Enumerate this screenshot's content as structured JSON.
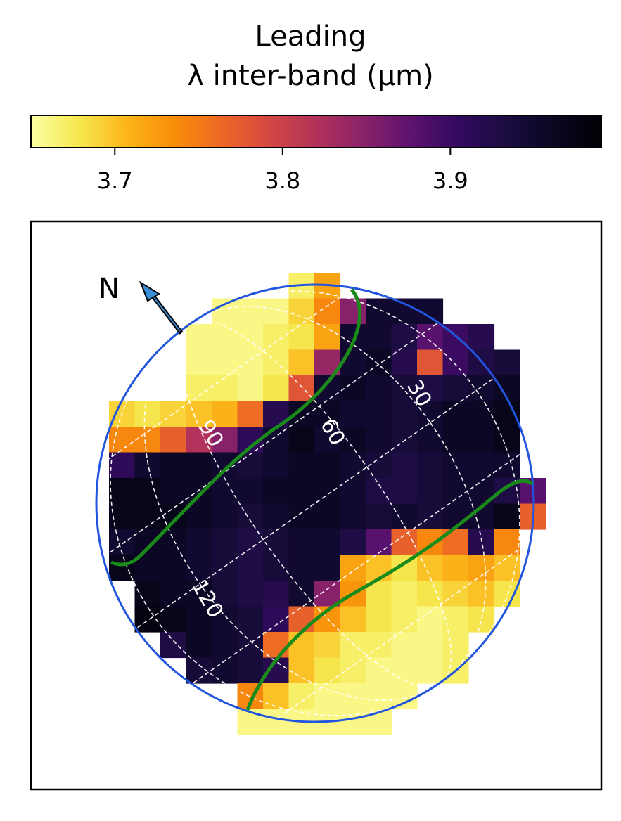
{
  "chart_data": {
    "type": "heatmap",
    "title_line1": "Leading",
    "title_line2": "λ inter-band  (μm)",
    "colorbar": {
      "min": 3.65,
      "max": 3.99,
      "ticks": [
        "3.7",
        "3.8",
        "3.9"
      ],
      "tick_values": [
        3.7,
        3.8,
        3.9
      ],
      "colormap": "inferno_r",
      "stops": [
        "#fcffa4",
        "#f7e850",
        "#fbb61a",
        "#f98e09",
        "#ed6925",
        "#d44842",
        "#b1325a",
        "#8a226a",
        "#5d126e",
        "#320a5e",
        "#1b0c41",
        "#0a0722",
        "#000004"
      ]
    },
    "north_label": "N",
    "grid_labels": [
      "30",
      "60",
      "90",
      "120"
    ],
    "limb_color": "#2255dd",
    "terminator_color": "#1a8a1a",
    "grid_color": "#ffffff",
    "pixel_rows": [
      {
        "row": 0,
        "c0": 7,
        "v": [
          3.67,
          3.72
        ]
      },
      {
        "row": 1,
        "c0": 4,
        "v": [
          3.66,
          3.66,
          3.66,
          3.69,
          3.74,
          3.85,
          3.95,
          3.95,
          3.95
        ]
      },
      {
        "row": 2,
        "c0": 3,
        "v": [
          3.66,
          3.66,
          3.66,
          3.67,
          3.68,
          3.72,
          3.95,
          3.95,
          3.93,
          3.88,
          3.9,
          3.92
        ]
      },
      {
        "row": 3,
        "c0": 3,
        "v": [
          3.66,
          3.66,
          3.66,
          3.67,
          3.7,
          3.84,
          3.95,
          3.96,
          3.92,
          3.78,
          3.9,
          3.93,
          3.94
        ]
      },
      {
        "row": 4,
        "c0": 3,
        "v": [
          3.67,
          3.67,
          3.66,
          3.68,
          3.78,
          3.95,
          3.96,
          3.95,
          3.94,
          3.93,
          3.94,
          3.95,
          3.96
        ]
      },
      {
        "row": 5,
        "c0": 0,
        "v": [
          3.69,
          3.68,
          3.69,
          3.7,
          3.71,
          3.76,
          3.92,
          3.96,
          3.96,
          3.95,
          3.95,
          3.94,
          3.95,
          3.96,
          3.96,
          3.97
        ]
      },
      {
        "row": 6,
        "c0": 0,
        "v": [
          3.74,
          3.74,
          3.77,
          3.82,
          3.85,
          3.91,
          3.95,
          3.97,
          3.95,
          3.96,
          3.95,
          3.94,
          3.95,
          3.96,
          3.96,
          3.97
        ]
      },
      {
        "row": 7,
        "c0": 0,
        "v": [
          3.91,
          3.95,
          3.96,
          3.96,
          3.95,
          3.94,
          3.95,
          3.96,
          3.96,
          3.95,
          3.94,
          3.93,
          3.94,
          3.95,
          3.95,
          3.95
        ]
      },
      {
        "row": 8,
        "c0": 0,
        "v": [
          3.97,
          3.97,
          3.96,
          3.96,
          3.95,
          3.95,
          3.96,
          3.96,
          3.96,
          3.95,
          3.93,
          3.93,
          3.94,
          3.95,
          3.95,
          3.93,
          3.88
        ]
      },
      {
        "row": 9,
        "c0": 0,
        "v": [
          3.97,
          3.97,
          3.97,
          3.96,
          3.95,
          3.94,
          3.95,
          3.96,
          3.96,
          3.95,
          3.94,
          3.95,
          3.94,
          3.95,
          3.95,
          3.97,
          3.77
        ]
      },
      {
        "row": 10,
        "c0": 0,
        "v": [
          3.95,
          3.96,
          3.96,
          3.95,
          3.94,
          3.93,
          3.94,
          3.95,
          3.95,
          3.93,
          3.88,
          3.77,
          3.74,
          3.76,
          3.92,
          3.74
        ]
      },
      {
        "row": 11,
        "c0": 0,
        "v": [
          3.97,
          3.96,
          3.96,
          3.95,
          3.94,
          3.93,
          3.94,
          3.95,
          3.95,
          3.72,
          3.7,
          3.68,
          3.7,
          3.71,
          3.72,
          3.7
        ]
      },
      {
        "row": 12,
        "c0": 1,
        "v": [
          3.97,
          3.96,
          3.96,
          3.94,
          3.93,
          3.92,
          3.95,
          3.85,
          3.73,
          3.68,
          3.67,
          3.68,
          3.69,
          3.7,
          3.68
        ]
      },
      {
        "row": 13,
        "c0": 1,
        "v": [
          3.98,
          3.97,
          3.96,
          3.95,
          3.94,
          3.91,
          3.77,
          3.73,
          3.7,
          3.68,
          3.67,
          3.66,
          3.67,
          3.68
        ]
      },
      {
        "row": 14,
        "c0": 2,
        "v": [
          3.93,
          3.96,
          3.95,
          3.94,
          3.76,
          3.7,
          3.69,
          3.67,
          3.67,
          3.66,
          3.66,
          3.67
        ]
      },
      {
        "row": 15,
        "c0": 3,
        "v": [
          3.94,
          3.95,
          3.94,
          3.92,
          3.7,
          3.68,
          3.67,
          3.66,
          3.66,
          3.66,
          3.67
        ]
      },
      {
        "row": 16,
        "c0": 5,
        "v": [
          3.74,
          3.7,
          3.67,
          3.66,
          3.66,
          3.66,
          3.66
        ]
      },
      {
        "row": 17,
        "c0": 5,
        "v": [
          3.66,
          3.66,
          3.66,
          3.66,
          3.66,
          3.66
        ]
      }
    ]
  }
}
